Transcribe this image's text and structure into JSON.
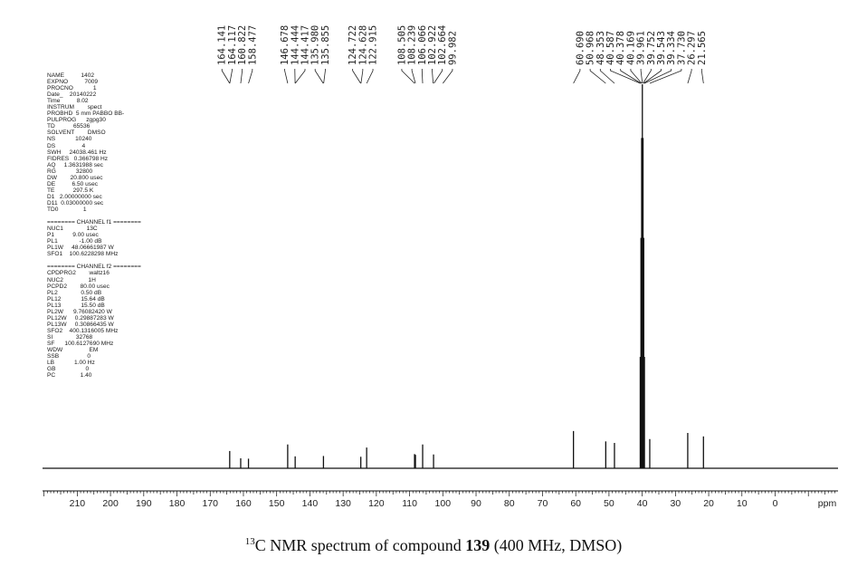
{
  "chart_data": {
    "type": "line",
    "xlabel": "ppm",
    "xlim": [
      215,
      -20
    ],
    "x_ticks": [
      210,
      200,
      190,
      180,
      170,
      160,
      150,
      140,
      130,
      120,
      110,
      100,
      90,
      80,
      70,
      60,
      50,
      40,
      30,
      20,
      10,
      0
    ],
    "x_tick_labels": [
      "210",
      "200",
      "190",
      "180",
      "170",
      "160",
      "150",
      "140",
      "130",
      "120",
      "110",
      "100",
      "90",
      "80",
      "70",
      "60",
      "50",
      "40",
      "30",
      "20",
      "10",
      "0"
    ],
    "peak_labels": [
      "164.141",
      "164.117",
      "160.822",
      "158.477",
      "146.678",
      "144.444",
      "144.417",
      "135.980",
      "135.855",
      "124.722",
      "124.628",
      "122.915",
      "108.505",
      "108.239",
      "106.066",
      "102.922",
      "102.664",
      "99.982",
      "60.690",
      "50.968",
      "48.353",
      "40.587",
      "40.378",
      "40.169",
      "39.961",
      "39.752",
      "39.543",
      "39.334",
      "37.730",
      "26.297",
      "21.565"
    ],
    "peak_groups": [
      {
        "values": [
          164.141,
          164.117,
          160.822,
          158.477
        ]
      },
      {
        "values": [
          146.678,
          144.444,
          144.417,
          135.98,
          135.855
        ]
      },
      {
        "values": [
          124.722,
          124.628,
          122.915
        ]
      },
      {
        "values": [
          108.505,
          108.239,
          106.066,
          102.922,
          102.664,
          99.982
        ]
      },
      {
        "values": [
          60.69,
          50.968,
          48.353,
          40.587,
          40.378,
          40.169,
          39.961,
          39.752,
          39.543,
          39.334,
          37.73,
          26.297,
          21.565
        ]
      }
    ],
    "peaks": [
      {
        "shift": 164.13,
        "intensity": 0.045
      },
      {
        "shift": 160.82,
        "intensity": 0.026
      },
      {
        "shift": 158.48,
        "intensity": 0.025
      },
      {
        "shift": 146.68,
        "intensity": 0.062
      },
      {
        "shift": 144.43,
        "intensity": 0.031
      },
      {
        "shift": 135.92,
        "intensity": 0.032
      },
      {
        "shift": 124.68,
        "intensity": 0.03
      },
      {
        "shift": 122.92,
        "intensity": 0.054
      },
      {
        "shift": 108.51,
        "intensity": 0.037
      },
      {
        "shift": 108.24,
        "intensity": 0.035
      },
      {
        "shift": 106.07,
        "intensity": 0.062
      },
      {
        "shift": 102.79,
        "intensity": 0.036
      },
      {
        "shift": 60.69,
        "intensity": 0.097
      },
      {
        "shift": 50.97,
        "intensity": 0.07
      },
      {
        "shift": 48.35,
        "intensity": 0.066
      },
      {
        "shift": 40.59,
        "intensity": 0.29
      },
      {
        "shift": 40.38,
        "intensity": 0.6
      },
      {
        "shift": 40.17,
        "intensity": 0.86
      },
      {
        "shift": 39.96,
        "intensity": 1.0
      },
      {
        "shift": 39.75,
        "intensity": 0.86
      },
      {
        "shift": 39.54,
        "intensity": 0.6
      },
      {
        "shift": 39.33,
        "intensity": 0.29
      },
      {
        "shift": 37.73,
        "intensity": 0.076
      },
      {
        "shift": 26.3,
        "intensity": 0.092
      },
      {
        "shift": 21.57,
        "intensity": 0.083
      }
    ],
    "caption": {
      "nucleus_mass": "13",
      "before": "C NMR spectrum of compound ",
      "compound": "139",
      "after": " (400 MHz, DMSO)"
    }
  },
  "acquisition_parameters": "NAME          1402\nEXPNO          7009\nPROCNO            1\nDate_    20140222\nTime          8.02\nINSTRUM        spect\nPROBHD  5 mm PABBO BB-\nPULPROG      zgpg30\nTD           65536\nSOLVENT        DMSO\nNS            10240\nDS                4\nSWH     24038.461 Hz\nFIDRES   0.366798 Hz\nAQ     1.3631988 sec\nRG            32800\nDW        20.800 usec\nDE          6.50 usec\nTE           297.5 K\nD1   2.00000000 sec\nD11  0.03000000 sec\nTD0               1\n\n======== CHANNEL f1 ========\nNUC1              13C\nP1           9.00 usec\nPL1             -1.00 dB\nPL1W     48.06661987 W\nSFO1    100.6228298 MHz\n\n======== CHANNEL f2 ========\nCPDPRG2        waltz16\nNUC2               1H\nPCPD2        80.00 usec\nPL2              0.50 dB\nPL12            15.64 dB\nPL13            15.50 dB\nPL2W      9.76082420 W\nPL12W     0.29887283 W\nPL13W     0.30866435 W\nSFO2    400.1316005 MHz\nSI              32768\nSF      100.6127690 MHz\nWDW                EM\nSSB                 0\nLB            1.00 Hz\nGB                  0\nPC               1.40"
}
